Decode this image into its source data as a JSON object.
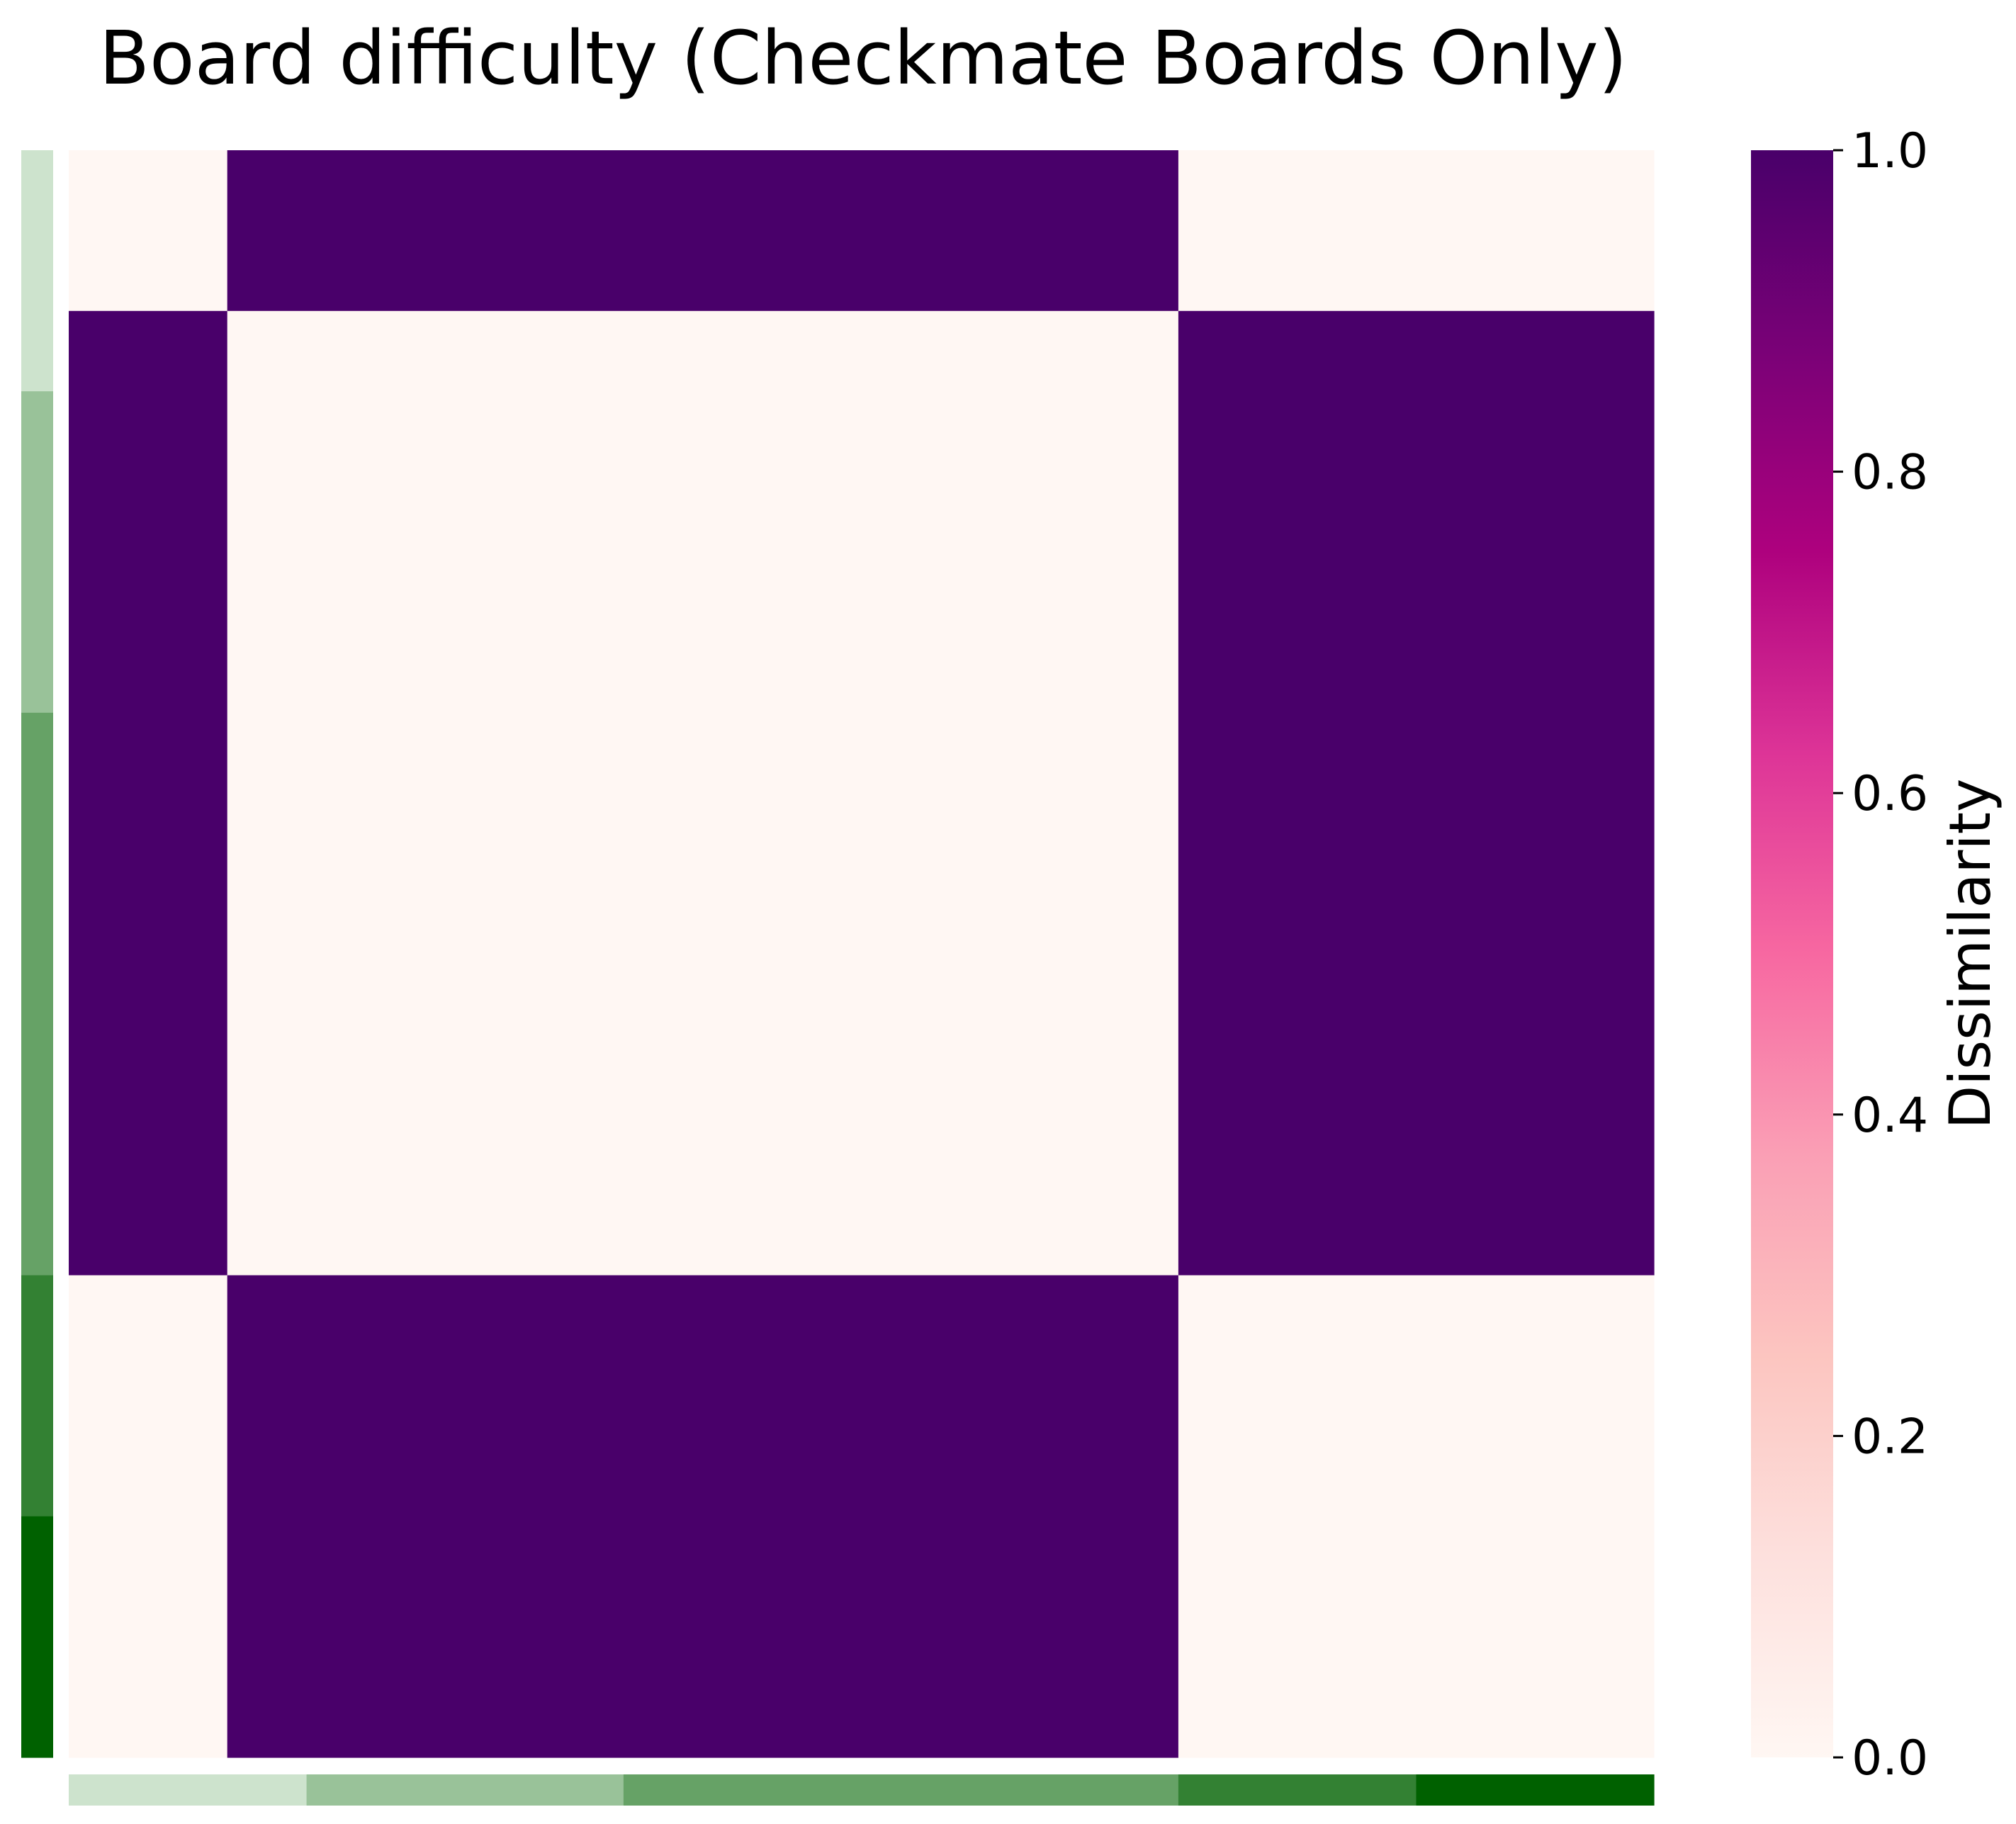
{
  "chart_data": {
    "type": "heatmap",
    "title": "Board difficulty (Checkmate Boards Only)",
    "xlabel": "",
    "ylabel": "",
    "row_groups": [
      {
        "count": 1.5,
        "color": "#cde3cd"
      },
      {
        "count": 2,
        "color": "#99c299"
      },
      {
        "count": 3.5,
        "color": "#66a266"
      },
      {
        "count": 1.5,
        "color": "#338133"
      },
      {
        "count": 1.5,
        "color": "#006100"
      }
    ],
    "column_groups": [
      {
        "count": 1.5,
        "color": "#cde3cd"
      },
      {
        "count": 2,
        "color": "#99c299"
      },
      {
        "count": 3.5,
        "color": "#66a266"
      },
      {
        "count": 1.5,
        "color": "#338133"
      },
      {
        "count": 1.5,
        "color": "#006100"
      }
    ],
    "row_boundaries": [
      0,
      1,
      7,
      10
    ],
    "column_boundaries": [
      0,
      1,
      7,
      10
    ],
    "values": [
      [
        0,
        1,
        0
      ],
      [
        1,
        0,
        1
      ],
      [
        0,
        1,
        0
      ]
    ],
    "colorbar": {
      "label": "Dissimilarity",
      "range": [
        0.0,
        1.0
      ],
      "ticks": [
        "0.0",
        "0.2",
        "0.4",
        "0.6",
        "0.8",
        "1.0"
      ],
      "colors": [
        "#fff7f3",
        "#fde0dd",
        "#fcc5c0",
        "#fa9fb5",
        "#f768a1",
        "#dd3497",
        "#ae017e",
        "#7a0177",
        "#49006a"
      ]
    }
  }
}
